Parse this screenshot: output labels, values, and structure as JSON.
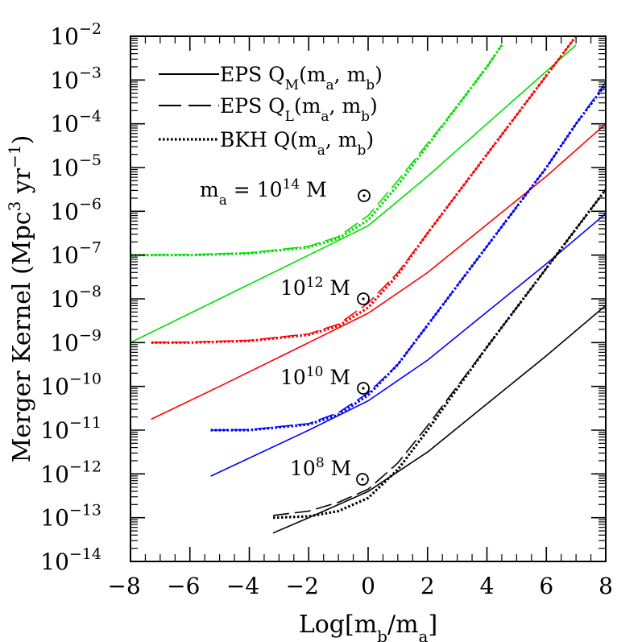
{
  "chart_data": {
    "type": "line",
    "title": "",
    "xlabel": "Log[m_b/m_a]",
    "ylabel": "Merger Kernel (Mpc^3 yr^-1)",
    "xlim": [
      -8,
      8
    ],
    "ylim_log10": [
      -14,
      -2
    ],
    "yscale": "log",
    "grid": false,
    "legend_position": "top-left",
    "x_ticks": [
      -8,
      -6,
      -4,
      -2,
      0,
      2,
      4,
      6,
      8
    ],
    "y_ticks_exponent": [
      -14,
      -13,
      -12,
      -11,
      -10,
      -9,
      -8,
      -7,
      -6,
      -5,
      -4,
      -3,
      -2
    ],
    "legend": [
      {
        "label": "EPS Q_M(m_a, m_b)",
        "style": "solid"
      },
      {
        "label": "EPS Q_L(m_a, m_b)",
        "style": "dashed"
      },
      {
        "label": "BKH Q(m_a, m_b)",
        "style": "dotted"
      }
    ],
    "annotations": [
      {
        "text": "m_a = 10^14 M_sun",
        "x": -2.6,
        "log10_y": -6.4
      },
      {
        "text": "10^12 M_sun",
        "x": -1.4,
        "log10_y": -8.2
      },
      {
        "text": "10^10 M_sun",
        "x": -1.4,
        "log10_y": -10.3
      },
      {
        "text": "10^8 M_sun",
        "x": -1.6,
        "log10_y": -12.4
      }
    ],
    "groups": [
      {
        "mass": "10^14",
        "color": "#00e000",
        "series": [
          {
            "style": "solid",
            "x": [
              -8,
              -5,
              -2,
              0,
              2,
              4,
              6,
              7
            ],
            "log10_y": [
              -9.0,
              -8.0,
              -7.0,
              -6.33,
              -5.2,
              -4.0,
              -2.8,
              -2.2
            ]
          },
          {
            "style": "dashed",
            "x": [
              -8,
              -6,
              -4,
              -2,
              -1,
              0,
              1,
              2,
              3,
              4,
              4.5
            ],
            "log10_y": [
              -7.0,
              -6.99,
              -6.95,
              -6.8,
              -6.58,
              -6.1,
              -5.3,
              -4.45,
              -3.6,
              -2.7,
              -2.2
            ]
          },
          {
            "style": "dotted",
            "x": [
              -8,
              -6,
              -4,
              -2,
              -1,
              0,
              1,
              2,
              3,
              4,
              4.5
            ],
            "log10_y": [
              -7.0,
              -7.0,
              -6.96,
              -6.82,
              -6.62,
              -6.2,
              -5.4,
              -4.5,
              -3.6,
              -2.7,
              -2.2
            ]
          }
        ]
      },
      {
        "mass": "10^12",
        "color": "#ff0000",
        "series": [
          {
            "style": "solid",
            "x": [
              -7.3,
              -5,
              -2,
              0,
              2,
              4,
              6,
              8
            ],
            "log10_y": [
              -10.75,
              -10.0,
              -9.0,
              -8.33,
              -7.4,
              -6.3,
              -5.2,
              -4.0
            ]
          },
          {
            "style": "dashed",
            "x": [
              -7.3,
              -6,
              -4,
              -2,
              -1,
              0,
              1,
              2,
              3,
              4,
              5,
              6,
              7
            ],
            "log10_y": [
              -9.0,
              -8.99,
              -8.95,
              -8.8,
              -8.58,
              -8.1,
              -7.4,
              -6.5,
              -5.6,
              -4.7,
              -3.8,
              -2.9,
              -2.0
            ]
          },
          {
            "style": "dotted",
            "x": [
              -7.3,
              -6,
              -4,
              -2,
              -1,
              0,
              1,
              2,
              3,
              4,
              5,
              6,
              7
            ],
            "log10_y": [
              -9.0,
              -9.0,
              -8.96,
              -8.82,
              -8.62,
              -8.2,
              -7.45,
              -6.5,
              -5.6,
              -4.7,
              -3.8,
              -2.9,
              -2.0
            ]
          }
        ]
      },
      {
        "mass": "10^10",
        "color": "#0000ff",
        "series": [
          {
            "style": "solid",
            "x": [
              -5.3,
              -2,
              0,
              2,
              4,
              6,
              8
            ],
            "log10_y": [
              -12.05,
              -11.0,
              -10.33,
              -9.4,
              -8.3,
              -7.2,
              -6.05
            ]
          },
          {
            "style": "dashed",
            "x": [
              -5.3,
              -4,
              -2,
              -1,
              0,
              1,
              2,
              3,
              4,
              5,
              6,
              7,
              8
            ],
            "log10_y": [
              -11.0,
              -10.99,
              -10.85,
              -10.6,
              -10.15,
              -9.5,
              -8.6,
              -7.7,
              -6.8,
              -5.9,
              -5.0,
              -4.0,
              -3.05
            ]
          },
          {
            "style": "dotted",
            "x": [
              -5.3,
              -4,
              -2,
              -1,
              0,
              1,
              2,
              3,
              4,
              5,
              6,
              7,
              8
            ],
            "log10_y": [
              -11.0,
              -11.0,
              -10.87,
              -10.65,
              -10.2,
              -9.5,
              -8.6,
              -7.7,
              -6.8,
              -5.9,
              -5.0,
              -4.0,
              -3.1
            ]
          }
        ]
      },
      {
        "mass": "10^8",
        "color": "#000000",
        "series": [
          {
            "style": "solid",
            "x": [
              -3.2,
              -2,
              0,
              2,
              4,
              6,
              8
            ],
            "log10_y": [
              -13.35,
              -13.0,
              -12.4,
              -11.5,
              -10.4,
              -9.3,
              -8.15
            ]
          },
          {
            "style": "dashed",
            "x": [
              -3.2,
              -2,
              -1,
              0,
              1,
              2,
              3,
              4,
              5,
              6,
              7,
              8
            ],
            "log10_y": [
              -12.95,
              -12.85,
              -12.65,
              -12.35,
              -11.75,
              -10.9,
              -10.0,
              -9.1,
              -8.2,
              -7.3,
              -6.4,
              -5.5
            ]
          },
          {
            "style": "dotted",
            "x": [
              -3.2,
              -2,
              -1,
              0,
              1,
              2,
              3,
              4,
              5,
              6,
              7,
              8
            ],
            "log10_y": [
              -13.0,
              -12.97,
              -12.85,
              -12.55,
              -11.9,
              -11.0,
              -10.05,
              -9.1,
              -8.2,
              -7.3,
              -6.4,
              -5.5
            ]
          }
        ]
      }
    ]
  }
}
